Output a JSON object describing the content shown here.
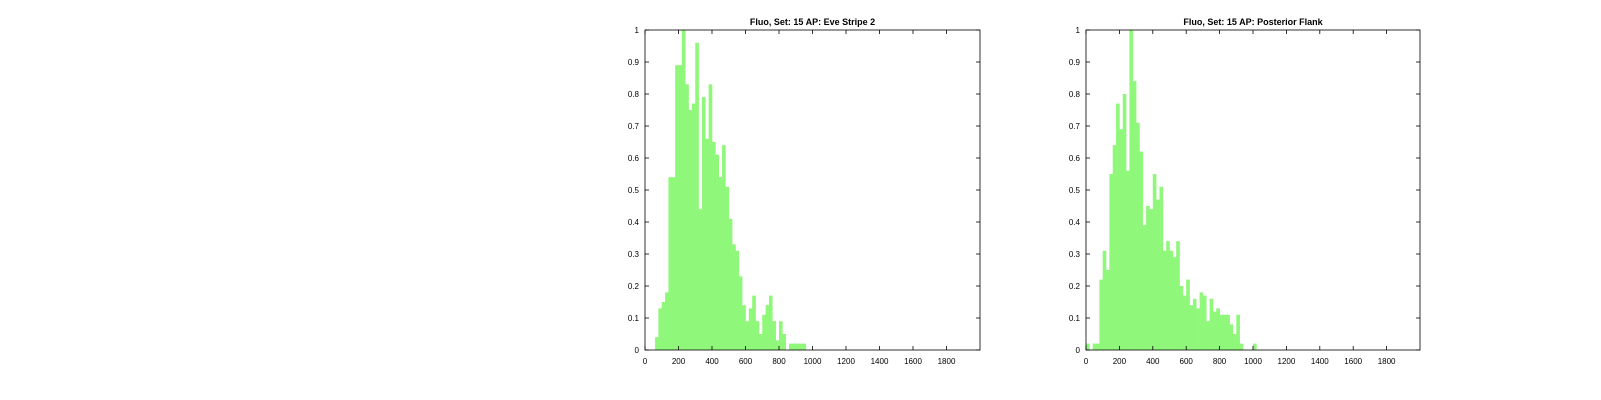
{
  "bar_color": "#8ff77a",
  "axis_color": "#000000",
  "chart_data": [
    {
      "type": "bar",
      "title": "Fluo, Set: 15 AP: Eve Stripe 2",
      "xlim": [
        0,
        2000
      ],
      "ylim": [
        0,
        1
      ],
      "x_ticks": [
        0,
        200,
        400,
        600,
        800,
        1000,
        1200,
        1400,
        1600,
        1800
      ],
      "y_ticks": [
        0,
        0.1,
        0.2,
        0.3,
        0.4,
        0.5,
        0.6,
        0.7,
        0.8,
        0.9,
        1
      ],
      "bin_width": 20,
      "x": [
        60,
        80,
        100,
        120,
        140,
        160,
        180,
        200,
        220,
        240,
        260,
        280,
        300,
        320,
        340,
        360,
        380,
        400,
        420,
        440,
        460,
        480,
        500,
        520,
        540,
        560,
        580,
        600,
        620,
        640,
        660,
        680,
        700,
        720,
        740,
        760,
        780,
        800,
        820,
        840,
        860,
        880,
        900,
        920,
        940,
        960,
        980,
        1000,
        1020,
        1040
      ],
      "values": [
        0.04,
        0.13,
        0.15,
        0.18,
        0.54,
        0.54,
        0.89,
        0.89,
        1.0,
        0.83,
        0.75,
        0.77,
        0.96,
        0.44,
        0.79,
        0.66,
        0.83,
        0.65,
        0.61,
        0.54,
        0.64,
        0.51,
        0.41,
        0.33,
        0.31,
        0.23,
        0.14,
        0.09,
        0.13,
        0.17,
        0.09,
        0.05,
        0.11,
        0.14,
        0.17,
        0.09,
        0.03,
        0.09,
        0.05,
        0.0,
        0.02,
        0.02,
        0.02,
        0.02,
        0.02,
        0.0,
        0.0,
        0.0,
        0.0,
        0.0
      ]
    },
    {
      "type": "bar",
      "title": "Fluo, Set: 15 AP: Posterior Flank",
      "xlim": [
        0,
        2000
      ],
      "ylim": [
        0,
        1
      ],
      "x_ticks": [
        0,
        200,
        400,
        600,
        800,
        1000,
        1200,
        1400,
        1600,
        1800
      ],
      "y_ticks": [
        0,
        0.1,
        0.2,
        0.3,
        0.4,
        0.5,
        0.6,
        0.7,
        0.8,
        0.9,
        1
      ],
      "bin_width": 20,
      "x": [
        0,
        20,
        40,
        60,
        80,
        100,
        120,
        140,
        160,
        180,
        200,
        220,
        240,
        260,
        280,
        300,
        320,
        340,
        360,
        380,
        400,
        420,
        440,
        460,
        480,
        500,
        520,
        540,
        560,
        580,
        600,
        620,
        640,
        660,
        680,
        700,
        720,
        740,
        760,
        780,
        800,
        820,
        840,
        860,
        880,
        900,
        920,
        940,
        960,
        980,
        1000,
        1020,
        1040,
        1060,
        1080,
        1100,
        1120,
        1140,
        1160
      ],
      "values": [
        0.02,
        0.0,
        0.02,
        0.02,
        0.22,
        0.31,
        0.25,
        0.55,
        0.64,
        0.77,
        0.69,
        0.8,
        0.56,
        1.0,
        0.84,
        0.71,
        0.62,
        0.39,
        0.45,
        0.44,
        0.55,
        0.47,
        0.51,
        0.31,
        0.34,
        0.31,
        0.29,
        0.34,
        0.2,
        0.17,
        0.22,
        0.14,
        0.16,
        0.13,
        0.18,
        0.17,
        0.09,
        0.16,
        0.12,
        0.13,
        0.11,
        0.11,
        0.11,
        0.08,
        0.05,
        0.11,
        0.02,
        0.0,
        0.0,
        0.0,
        0.02,
        0.0,
        0.0,
        0.0,
        0.0,
        0.0,
        0.0,
        0.0,
        0.0
      ]
    }
  ]
}
